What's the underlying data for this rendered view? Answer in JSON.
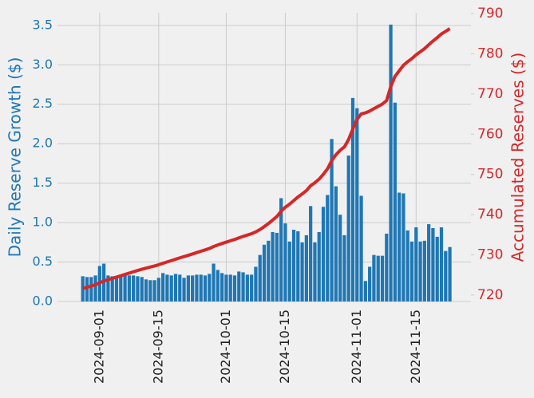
{
  "chart_data": {
    "type": "bar",
    "ylabel": "Daily Reserve Growth ($)",
    "y2label": "Accumulated Reserves ($)",
    "x": [
      "2024-08-28",
      "2024-08-29",
      "2024-08-30",
      "2024-08-31",
      "2024-09-01",
      "2024-09-02",
      "2024-09-03",
      "2024-09-04",
      "2024-09-05",
      "2024-09-06",
      "2024-09-07",
      "2024-09-08",
      "2024-09-09",
      "2024-09-10",
      "2024-09-11",
      "2024-09-12",
      "2024-09-13",
      "2024-09-14",
      "2024-09-15",
      "2024-09-16",
      "2024-09-17",
      "2024-09-18",
      "2024-09-19",
      "2024-09-20",
      "2024-09-21",
      "2024-09-22",
      "2024-09-23",
      "2024-09-24",
      "2024-09-25",
      "2024-09-26",
      "2024-09-27",
      "2024-09-28",
      "2024-09-29",
      "2024-09-30",
      "2024-10-01",
      "2024-10-02",
      "2024-10-03",
      "2024-10-04",
      "2024-10-05",
      "2024-10-06",
      "2024-10-07",
      "2024-10-08",
      "2024-10-09",
      "2024-10-10",
      "2024-10-11",
      "2024-10-12",
      "2024-10-13",
      "2024-10-14",
      "2024-10-15",
      "2024-10-16",
      "2024-10-17",
      "2024-10-18",
      "2024-10-19",
      "2024-10-20",
      "2024-10-21",
      "2024-10-22",
      "2024-10-23",
      "2024-10-24",
      "2024-10-25",
      "2024-10-26",
      "2024-10-27",
      "2024-10-28",
      "2024-10-29",
      "2024-10-30",
      "2024-10-31",
      "2024-11-01",
      "2024-11-02",
      "2024-11-03",
      "2024-11-04",
      "2024-11-05",
      "2024-11-06",
      "2024-11-07",
      "2024-11-08",
      "2024-11-09",
      "2024-11-10",
      "2024-11-11",
      "2024-11-12",
      "2024-11-13",
      "2024-11-14",
      "2024-11-15",
      "2024-11-16",
      "2024-11-17",
      "2024-11-18",
      "2024-11-19",
      "2024-11-20",
      "2024-11-21",
      "2024-11-22",
      "2024-11-23"
    ],
    "series": [
      {
        "type": "bar",
        "color": "#1f77b4",
        "values": [
          0.32,
          0.31,
          0.31,
          0.33,
          0.45,
          0.48,
          0.33,
          0.32,
          0.32,
          0.33,
          0.33,
          0.33,
          0.33,
          0.32,
          0.31,
          0.28,
          0.27,
          0.27,
          0.3,
          0.36,
          0.34,
          0.33,
          0.35,
          0.34,
          0.3,
          0.33,
          0.33,
          0.34,
          0.34,
          0.33,
          0.35,
          0.48,
          0.4,
          0.36,
          0.34,
          0.34,
          0.33,
          0.38,
          0.37,
          0.34,
          0.34,
          0.44,
          0.59,
          0.72,
          0.77,
          0.88,
          0.87,
          1.31,
          0.99,
          0.76,
          0.91,
          0.89,
          0.75,
          0.84,
          1.21,
          0.75,
          0.88,
          1.2,
          1.35,
          2.06,
          1.46,
          1.1,
          0.84,
          1.85,
          2.58,
          2.45,
          1.34,
          0.26,
          0.44,
          0.59,
          0.58,
          0.58,
          0.86,
          3.51,
          2.52,
          1.38,
          1.37,
          0.9,
          0.76,
          0.94,
          0.76,
          0.77,
          0.98,
          0.93,
          0.82,
          0.94,
          0.64,
          0.69
        ]
      },
      {
        "type": "line",
        "axis": "y2",
        "color": "#d62728",
        "values": [
          721.62,
          721.93,
          722.24,
          722.57,
          723.02,
          723.5,
          723.83,
          724.15,
          724.47,
          724.8,
          725.13,
          725.46,
          725.79,
          726.11,
          726.42,
          726.7,
          726.97,
          727.24,
          727.54,
          727.9,
          728.24,
          728.57,
          728.92,
          729.26,
          729.56,
          729.89,
          730.22,
          730.56,
          730.9,
          731.23,
          731.58,
          732.06,
          732.46,
          732.82,
          733.16,
          733.5,
          733.83,
          734.21,
          734.58,
          734.92,
          735.26,
          735.7,
          736.29,
          737.01,
          737.78,
          738.66,
          739.53,
          740.84,
          741.83,
          742.59,
          743.5,
          744.39,
          745.14,
          745.98,
          747.19,
          747.94,
          748.82,
          750.02,
          751.37,
          753.43,
          754.89,
          755.99,
          756.83,
          758.68,
          761.26,
          763.71,
          765.05,
          765.31,
          765.75,
          766.34,
          766.92,
          767.5,
          768.36,
          771.87,
          774.39,
          775.77,
          777.14,
          778.04,
          778.8,
          779.74,
          780.5,
          781.27,
          782.25,
          783.18,
          784.0,
          784.94,
          785.58,
          786.27
        ]
      }
    ],
    "xlim": [
      "2024-08-22",
      "2024-11-28"
    ],
    "xticks": [
      "2024-09-01",
      "2024-09-15",
      "2024-10-01",
      "2024-10-15",
      "2024-11-01",
      "2024-11-15"
    ],
    "ylim": [
      0,
      3.66
    ],
    "yticks": [
      {
        "value": 0,
        "label": "0.0"
      },
      0.5,
      {
        "value": 1,
        "label": "1.0"
      },
      1.5,
      {
        "value": 2,
        "label": "2.0"
      },
      2.5,
      {
        "value": 3,
        "label": "3.0"
      },
      3.5
    ],
    "y2lim": [
      718.4,
      790.2
    ],
    "y2ticks": [
      720,
      730,
      740,
      750,
      760,
      770,
      780,
      790
    ],
    "grid": true
  }
}
